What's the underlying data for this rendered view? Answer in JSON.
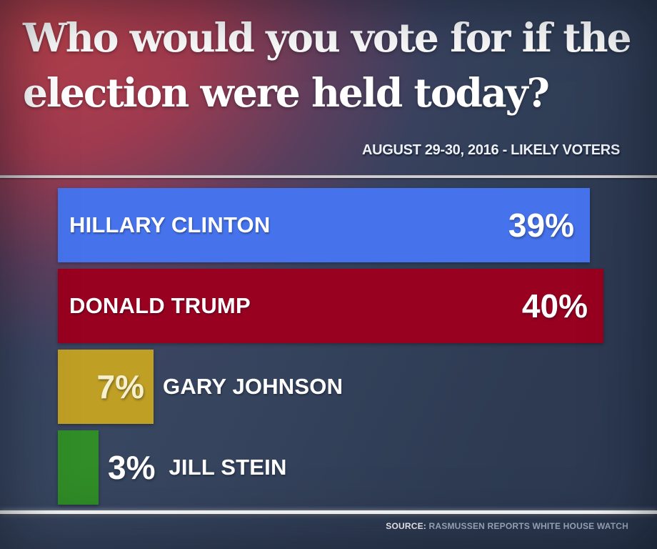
{
  "header": {
    "title_line1": "Who would you vote for if the",
    "title_line2": "election were held today?",
    "subtitle": "AUGUST 29-30, 2016 - LIKELY VOTERS"
  },
  "chart_data": {
    "type": "bar",
    "orientation": "horizontal",
    "title": "Who would you vote for if the election were held today?",
    "subtitle": "AUGUST 29-30, 2016 - LIKELY VOTERS",
    "unit": "%",
    "categories": [
      "HILLARY CLINTON",
      "DONALD TRUMP",
      "GARY JOHNSON",
      "JILL STEIN"
    ],
    "values": [
      39,
      40,
      7,
      3
    ],
    "value_labels": [
      "39%",
      "40%",
      "7%",
      "3%"
    ],
    "bar_colors": [
      "#4673ec",
      "#98011f",
      "#bf9f24",
      "#308d27"
    ],
    "value_label_colors": [
      "#ffffff",
      "#ffffff",
      "#f6f0cc",
      "#ffffff"
    ],
    "label_layouts": [
      "inside",
      "inside",
      "value-inside",
      "outside"
    ],
    "xlim": [
      0,
      44
    ],
    "grid": false,
    "legend": false
  },
  "footer": {
    "source_label": "SOURCE:",
    "source_text": " RASMUSSEN REPORTS WHITE HOUSE WATCH"
  },
  "colors": {
    "background_navy": "#2e3b53",
    "glow_red": "#b5404a",
    "clinton_blue": "#4673ec",
    "trump_red": "#98011f",
    "johnson_gold": "#bf9f24",
    "stein_green": "#308d27",
    "divider_top_gray": "#d9d7d9",
    "divider_bottom_white": "#ffffff",
    "source_text_gray": "#a9b6ca"
  }
}
